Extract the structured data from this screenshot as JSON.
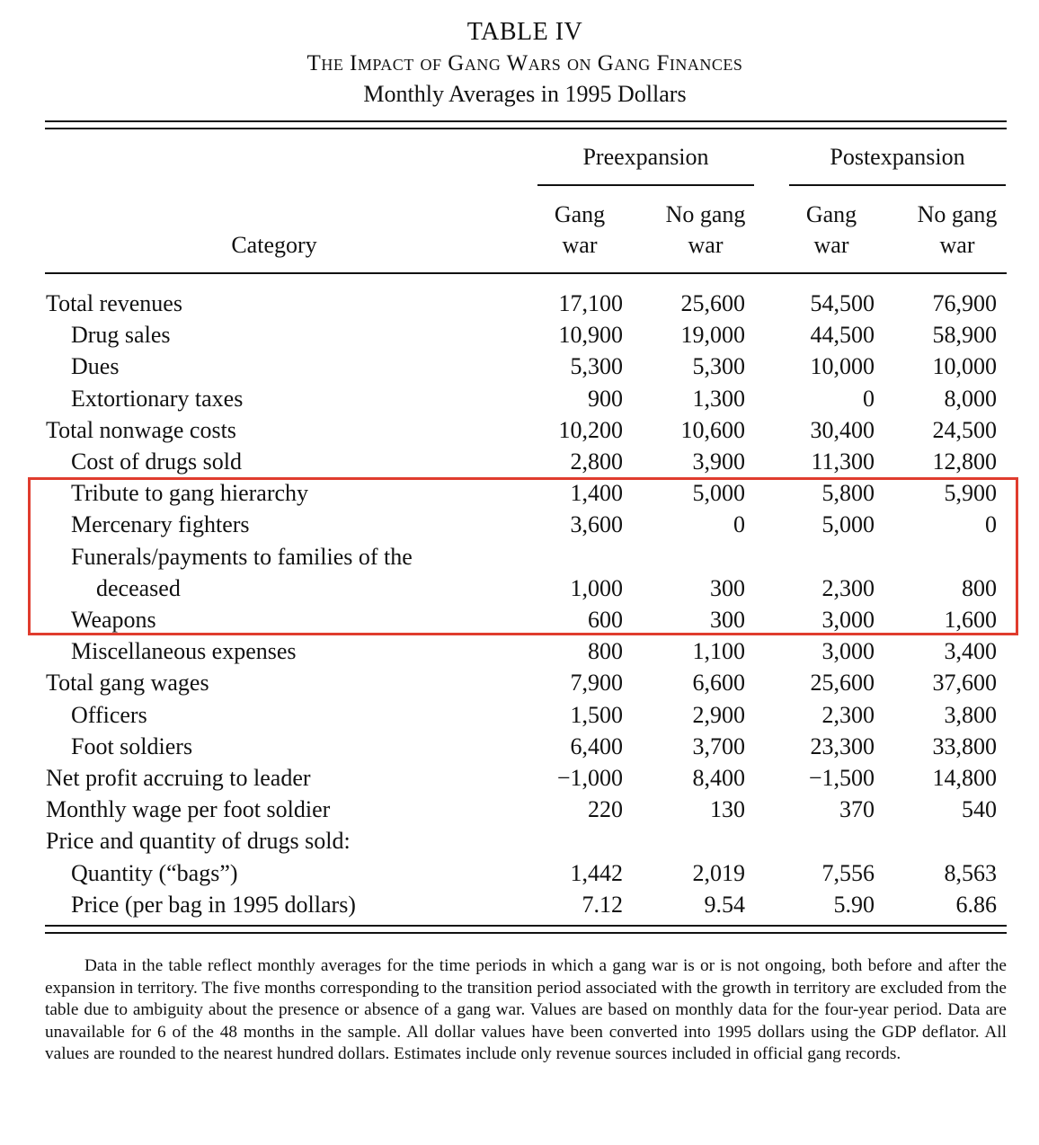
{
  "table": {
    "number": "TABLE IV",
    "title": "The Impact of Gang Wars on Gang Finances",
    "subtitle": "Monthly Averages in 1995 Dollars",
    "group_headers": [
      "Preexpansion",
      "Postexpansion"
    ],
    "category_header": "Category",
    "column_headers": [
      {
        "line1": "Gang",
        "line2": "war"
      },
      {
        "line1": "No gang",
        "line2": "war"
      },
      {
        "line1": "Gang",
        "line2": "war"
      },
      {
        "line1": "No gang",
        "line2": "war"
      }
    ],
    "rows": [
      {
        "label": "Total revenues",
        "values": [
          "17,100",
          "25,600",
          "54,500",
          "76,900"
        ]
      },
      {
        "label": "Drug sales",
        "values": [
          "10,900",
          "19,000",
          "44,500",
          "58,900"
        ]
      },
      {
        "label": "Dues",
        "values": [
          "5,300",
          "5,300",
          "10,000",
          "10,000"
        ]
      },
      {
        "label": "Extortionary taxes",
        "values": [
          "900",
          "1,300",
          "0",
          "8,000"
        ]
      },
      {
        "label": "Total nonwage costs",
        "values": [
          "10,200",
          "10,600",
          "30,400",
          "24,500"
        ]
      },
      {
        "label": "Cost of drugs sold",
        "values": [
          "2,800",
          "3,900",
          "11,300",
          "12,800"
        ]
      },
      {
        "label": "Tribute to gang hierarchy",
        "values": [
          "1,400",
          "5,000",
          "5,800",
          "5,900"
        ]
      },
      {
        "label": "Mercenary fighters",
        "values": [
          "3,600",
          "0",
          "5,000",
          "0"
        ]
      },
      {
        "label": "Funerals/payments to families of the",
        "values": [
          "",
          "",
          "",
          ""
        ]
      },
      {
        "label": "deceased",
        "values": [
          "1,000",
          "300",
          "2,300",
          "800"
        ]
      },
      {
        "label": "Weapons",
        "values": [
          "600",
          "300",
          "3,000",
          "1,600"
        ]
      },
      {
        "label": "Miscellaneous expenses",
        "values": [
          "800",
          "1,100",
          "3,000",
          "3,400"
        ]
      },
      {
        "label": "Total gang wages",
        "values": [
          "7,900",
          "6,600",
          "25,600",
          "37,600"
        ]
      },
      {
        "label": "Officers",
        "values": [
          "1,500",
          "2,900",
          "2,300",
          "3,800"
        ]
      },
      {
        "label": "Foot soldiers",
        "values": [
          "6,400",
          "3,700",
          "23,300",
          "33,800"
        ]
      },
      {
        "label": "Net profit accruing to leader",
        "values": [
          "−1,000",
          "8,400",
          "−1,500",
          "14,800"
        ]
      },
      {
        "label": "Monthly wage per foot soldier",
        "values": [
          "220",
          "130",
          "370",
          "540"
        ]
      },
      {
        "label": "Price and quantity of drugs sold:",
        "values": [
          "",
          "",
          "",
          ""
        ]
      },
      {
        "label": "Quantity (“bags”)",
        "values": [
          "1,442",
          "2,019",
          "7,556",
          "8,563"
        ]
      },
      {
        "label": "Price (per bag in 1995 dollars)",
        "values": [
          "7.12",
          "9.54",
          "5.90",
          "6.86"
        ]
      }
    ],
    "note": "Data in the table reflect monthly averages for the time periods in which a gang war is or is not ongoing, both before and after the expansion in territory. The five months corresponding to the transition period associated with the growth in territory are excluded from the table due to ambiguity about the presence or absence of a gang war. Values are based on monthly data for the four-year period. Data are unavailable for 6 of the 48 months in the sample. All dollar values have been converted into 1995 dollars using the GDP deflator. All values are rounded to the nearest hundred dollars. Estimates include only revenue sources included in official gang records."
  },
  "highlight_color": "#e03c2e"
}
